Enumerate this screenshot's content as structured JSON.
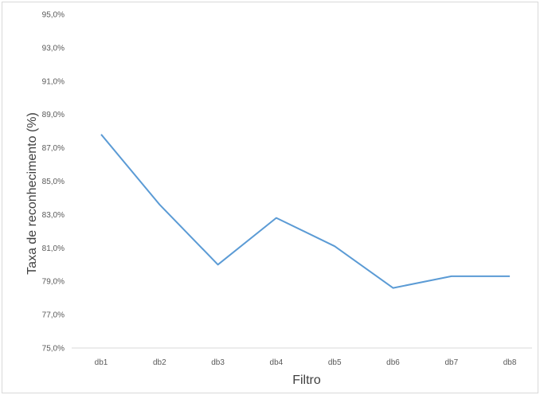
{
  "chart_data": {
    "type": "line",
    "title": "",
    "xlabel": "Filtro",
    "ylabel": "Taxa de reconhecimento (%)",
    "categories": [
      "db1",
      "db2",
      "db3",
      "db4",
      "db5",
      "db6",
      "db7",
      "db8"
    ],
    "series": [
      {
        "values": [
          87.8,
          83.6,
          80.0,
          82.8,
          81.1,
          78.6,
          79.3,
          79.3
        ]
      }
    ],
    "ylim": [
      75.0,
      95.0
    ],
    "yticks": [
      75.0,
      77.0,
      79.0,
      81.0,
      83.0,
      85.0,
      87.0,
      89.0,
      91.0,
      93.0,
      95.0
    ],
    "ytick_labels": [
      "75,0%",
      "77,0%",
      "79,0%",
      "81,0%",
      "83,0%",
      "85,0%",
      "87,0%",
      "89,0%",
      "91,0%",
      "93,0%",
      "95,0%"
    ],
    "grid": false,
    "legend": false,
    "line_color": "#5b9bd5",
    "axis_color": "#d9d9d9"
  }
}
